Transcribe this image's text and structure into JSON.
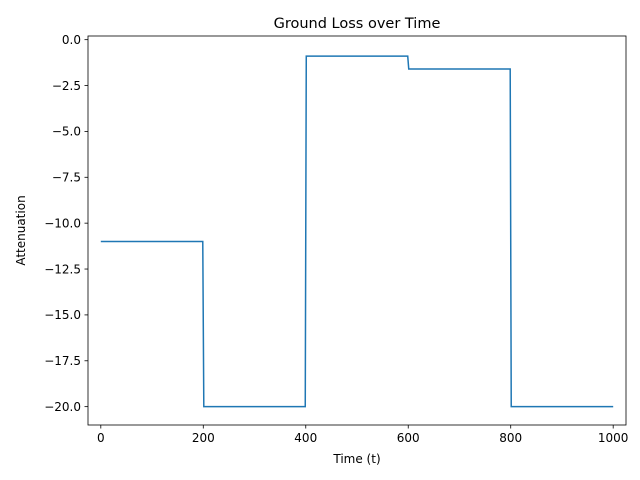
{
  "chart_data": {
    "type": "line",
    "title": "Ground Loss over Time",
    "xlabel": "Time (t)",
    "ylabel": "Attenuation",
    "xlim": [
      -25,
      1025
    ],
    "ylim": [
      -21.0,
      0.2
    ],
    "xticks": [
      0,
      200,
      400,
      600,
      800,
      1000
    ],
    "xtick_labels": [
      "0",
      "200",
      "400",
      "600",
      "800",
      "1000"
    ],
    "yticks": [
      0.0,
      -2.5,
      -5.0,
      -7.5,
      -10.0,
      -12.5,
      -15.0,
      -17.5,
      -20.0
    ],
    "ytick_labels": [
      "0.0",
      "−2.5",
      "−5.0",
      "−7.5",
      "−10.0",
      "−12.5",
      "−15.0",
      "−17.5",
      "−20.0"
    ],
    "grid": false,
    "series": [
      {
        "color": "#1f77b4",
        "x": [
          0,
          199,
          201,
          399,
          401,
          599,
          601,
          799,
          801,
          1000
        ],
        "y": [
          -11.0,
          -11.0,
          -20.0,
          -20.0,
          -0.9,
          -0.9,
          -1.6,
          -1.6,
          -20.0,
          -20.0
        ]
      }
    ]
  }
}
